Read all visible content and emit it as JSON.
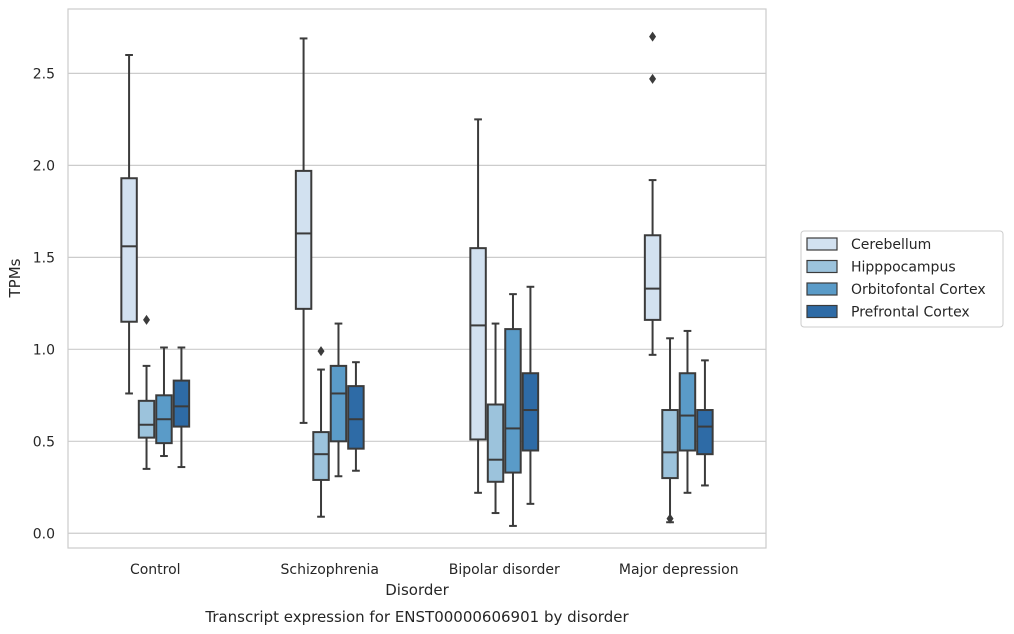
{
  "chart_data": {
    "type": "box",
    "title": "Transcript expression for ENST00000606901 by disorder",
    "xlabel": "Disorder",
    "ylabel": "TPMs",
    "categories": [
      "Control",
      "Schizophrenia",
      "Bipolar disorder",
      "Major depression"
    ],
    "ylim": [
      -0.08,
      2.85
    ],
    "yticks": [
      0.0,
      0.5,
      1.0,
      1.5,
      2.0,
      2.5
    ],
    "ytick_labels": [
      "0.0",
      "0.5",
      "1.0",
      "1.5",
      "2.0",
      "2.5"
    ],
    "grid": "horizontal",
    "legend_position": "right",
    "series": [
      {
        "name": "Cerebellum",
        "color": "#d2e1f0",
        "boxes": [
          {
            "whisker_low": 0.76,
            "q1": 1.15,
            "median": 1.56,
            "q3": 1.93,
            "whisker_high": 2.6,
            "outliers": []
          },
          {
            "whisker_low": 0.6,
            "q1": 1.22,
            "median": 1.63,
            "q3": 1.97,
            "whisker_high": 2.69,
            "outliers": []
          },
          {
            "whisker_low": 0.22,
            "q1": 0.51,
            "median": 1.13,
            "q3": 1.55,
            "whisker_high": 2.25,
            "outliers": []
          },
          {
            "whisker_low": 0.97,
            "q1": 1.16,
            "median": 1.33,
            "q3": 1.62,
            "whisker_high": 1.92,
            "outliers": [
              2.47,
              2.7
            ]
          }
        ]
      },
      {
        "name": "Hipppocampus",
        "color": "#9cc3dc",
        "boxes": [
          {
            "whisker_low": 0.35,
            "q1": 0.52,
            "median": 0.59,
            "q3": 0.72,
            "whisker_high": 0.91,
            "outliers": [
              1.16
            ]
          },
          {
            "whisker_low": 0.09,
            "q1": 0.29,
            "median": 0.43,
            "q3": 0.55,
            "whisker_high": 0.89,
            "outliers": [
              0.99
            ]
          },
          {
            "whisker_low": 0.11,
            "q1": 0.28,
            "median": 0.4,
            "q3": 0.7,
            "whisker_high": 1.14,
            "outliers": []
          },
          {
            "whisker_low": 0.06,
            "q1": 0.3,
            "median": 0.44,
            "q3": 0.67,
            "whisker_high": 1.06,
            "outliers": [
              0.08
            ]
          }
        ]
      },
      {
        "name": "Orbitofontal Cortex",
        "color": "#5a9bc8",
        "boxes": [
          {
            "whisker_low": 0.42,
            "q1": 0.49,
            "median": 0.62,
            "q3": 0.75,
            "whisker_high": 1.01,
            "outliers": []
          },
          {
            "whisker_low": 0.31,
            "q1": 0.5,
            "median": 0.76,
            "q3": 0.91,
            "whisker_high": 1.14,
            "outliers": []
          },
          {
            "whisker_low": 0.04,
            "q1": 0.33,
            "median": 0.57,
            "q3": 1.11,
            "whisker_high": 1.3,
            "outliers": []
          },
          {
            "whisker_low": 0.22,
            "q1": 0.45,
            "median": 0.64,
            "q3": 0.87,
            "whisker_high": 1.1,
            "outliers": []
          }
        ]
      },
      {
        "name": "Prefrontal Cortex",
        "color": "#2e6ba6",
        "boxes": [
          {
            "whisker_low": 0.36,
            "q1": 0.58,
            "median": 0.69,
            "q3": 0.83,
            "whisker_high": 1.01,
            "outliers": []
          },
          {
            "whisker_low": 0.34,
            "q1": 0.46,
            "median": 0.62,
            "q3": 0.8,
            "whisker_high": 0.93,
            "outliers": []
          },
          {
            "whisker_low": 0.16,
            "q1": 0.45,
            "median": 0.67,
            "q3": 0.87,
            "whisker_high": 1.34,
            "outliers": []
          },
          {
            "whisker_low": 0.26,
            "q1": 0.43,
            "median": 0.58,
            "q3": 0.67,
            "whisker_high": 0.94,
            "outliers": []
          }
        ]
      }
    ]
  }
}
